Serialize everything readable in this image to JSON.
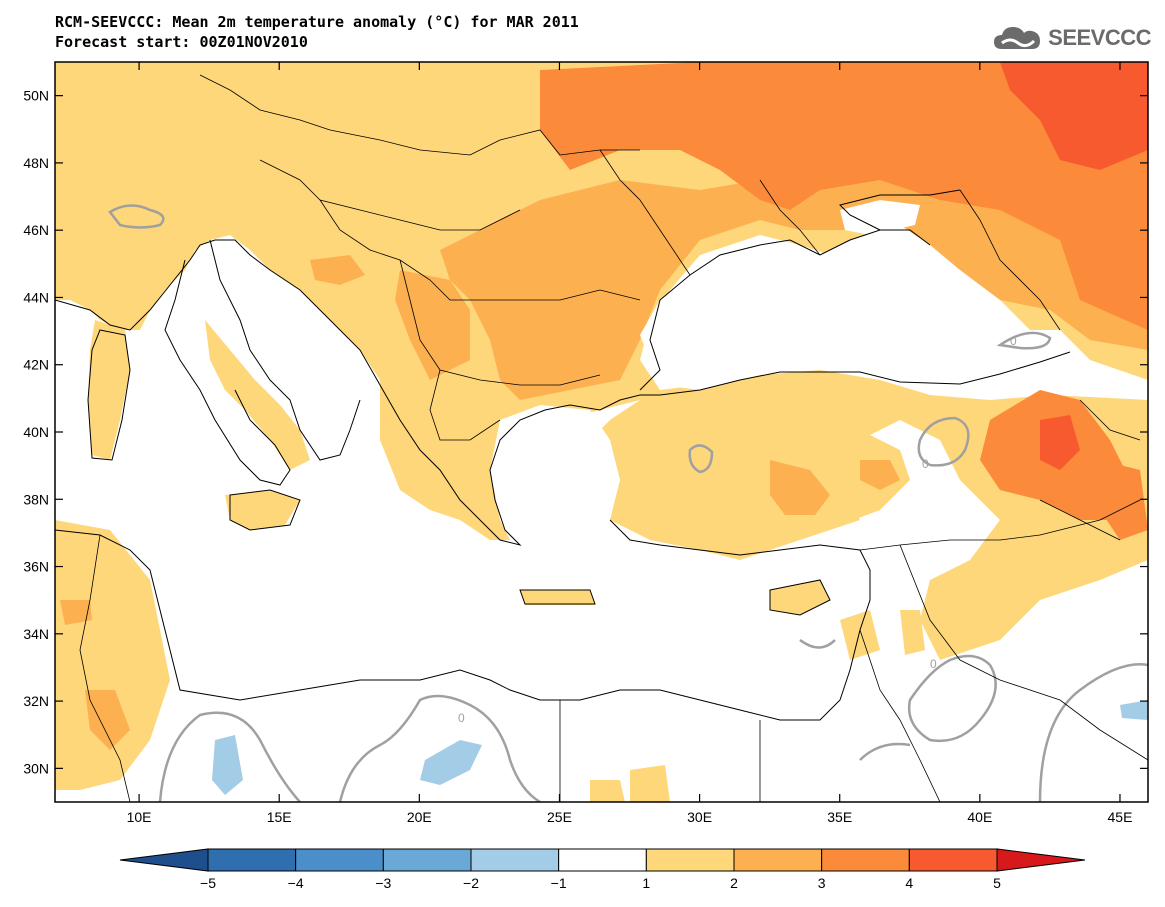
{
  "title_line1": "RCM-SEEVCCC: Mean 2m temperature anomaly (°C) for MAR 2011",
  "title_line2": "Forecast start: 00Z01NOV2010",
  "logo_text": "SEEVCCC",
  "logo_icon": "cloud-icon",
  "map": {
    "lon_range": [
      7,
      46
    ],
    "lat_range": [
      29,
      51
    ],
    "lat_ticks": [
      {
        "value": 50,
        "label": "50N"
      },
      {
        "value": 48,
        "label": "48N"
      },
      {
        "value": 46,
        "label": "46N"
      },
      {
        "value": 44,
        "label": "44N"
      },
      {
        "value": 42,
        "label": "42N"
      },
      {
        "value": 40,
        "label": "40N"
      },
      {
        "value": 38,
        "label": "38N"
      },
      {
        "value": 36,
        "label": "36N"
      },
      {
        "value": 34,
        "label": "34N"
      },
      {
        "value": 32,
        "label": "32N"
      },
      {
        "value": 30,
        "label": "30N"
      }
    ],
    "lon_ticks": [
      {
        "value": 10,
        "label": "10E"
      },
      {
        "value": 15,
        "label": "15E"
      },
      {
        "value": 20,
        "label": "20E"
      },
      {
        "value": 25,
        "label": "25E"
      },
      {
        "value": 30,
        "label": "30E"
      },
      {
        "value": 35,
        "label": "35E"
      },
      {
        "value": 40,
        "label": "40E"
      },
      {
        "value": 45,
        "label": "45E"
      }
    ],
    "contour_labels": [
      "0",
      "0",
      "0",
      "0"
    ]
  },
  "colorbar": {
    "colors": [
      "#1f4e8c",
      "#2f6fb0",
      "#4a8fc9",
      "#6aa8d8",
      "#a3cce6",
      "#ffffff",
      "#fed77a",
      "#fcb050",
      "#fb8a3a",
      "#f75a2e",
      "#d7191c"
    ],
    "labels": [
      "−5",
      "−4",
      "−3",
      "−2",
      "−1",
      "1",
      "2",
      "3",
      "4",
      "5"
    ]
  },
  "palette": {
    "land_blank": "#ffffff",
    "anom_1_2": "#fed77a",
    "anom_2_3": "#fcb050",
    "anom_3_4": "#fb8a3a",
    "anom_4_5": "#f75a2e",
    "anom_m2_m1": "#a3cce6",
    "contour_zero": "#a0a0a0"
  }
}
